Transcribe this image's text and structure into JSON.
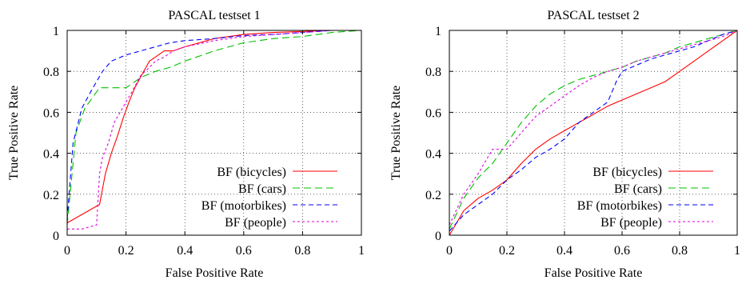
{
  "chart_data": [
    {
      "type": "line",
      "title": "PASCAL testset 1",
      "xlabel": "False Positive Rate",
      "ylabel": "True Positive Rate",
      "xlim": [
        0,
        1
      ],
      "ylim": [
        0,
        1
      ],
      "xticks": [
        "0",
        "0.2",
        "0.4",
        "0.6",
        "0.8",
        "1"
      ],
      "yticks": [
        "0",
        "0.2",
        "0.4",
        "0.6",
        "0.8",
        "1"
      ],
      "grid": true,
      "legend_position": "bottom-right",
      "series": [
        {
          "name": "BF (bicycles)",
          "color": "#ff0000",
          "dash": "solid",
          "x": [
            0,
            0.11,
            0.13,
            0.15,
            0.17,
            0.19,
            0.21,
            0.23,
            0.26,
            0.28,
            0.3,
            0.33,
            0.36,
            0.4,
            0.45,
            0.5,
            0.55,
            0.6,
            0.7,
            0.8,
            0.9,
            1
          ],
          "y": [
            0.06,
            0.15,
            0.3,
            0.4,
            0.48,
            0.57,
            0.65,
            0.72,
            0.8,
            0.85,
            0.87,
            0.9,
            0.9,
            0.92,
            0.94,
            0.96,
            0.97,
            0.98,
            0.99,
            0.995,
            1.0,
            1.0
          ]
        },
        {
          "name": "BF (cars)",
          "color": "#00c000",
          "dash": "long",
          "x": [
            0,
            0.01,
            0.03,
            0.06,
            0.1,
            0.11,
            0.2,
            0.25,
            0.3,
            0.35,
            0.4,
            0.5,
            0.55,
            0.6,
            0.65,
            0.7,
            0.8,
            0.85,
            0.9,
            1
          ],
          "y": [
            0.05,
            0.2,
            0.5,
            0.62,
            0.7,
            0.72,
            0.72,
            0.77,
            0.8,
            0.82,
            0.85,
            0.9,
            0.92,
            0.94,
            0.95,
            0.96,
            0.97,
            0.98,
            0.99,
            1.0
          ]
        },
        {
          "name": "BF (motorbikes)",
          "color": "#0000ff",
          "dash": "medium",
          "x": [
            0,
            0.02,
            0.05,
            0.08,
            0.1,
            0.12,
            0.15,
            0.2,
            0.25,
            0.3,
            0.35,
            0.4,
            0.5,
            0.6,
            0.7,
            0.8,
            0.9,
            1
          ],
          "y": [
            0.08,
            0.45,
            0.62,
            0.7,
            0.75,
            0.8,
            0.85,
            0.88,
            0.9,
            0.92,
            0.94,
            0.95,
            0.96,
            0.975,
            0.98,
            0.99,
            1.0,
            1.0
          ]
        },
        {
          "name": "BF (people)",
          "color": "#e000e0",
          "dash": "dotted",
          "x": [
            0,
            0.05,
            0.1,
            0.11,
            0.12,
            0.14,
            0.16,
            0.18,
            0.2,
            0.22,
            0.25,
            0.28,
            0.3,
            0.33,
            0.36,
            0.4,
            0.5,
            0.6,
            0.7,
            0.8,
            0.9,
            1
          ],
          "y": [
            0.03,
            0.03,
            0.05,
            0.3,
            0.38,
            0.45,
            0.55,
            0.6,
            0.65,
            0.7,
            0.78,
            0.82,
            0.85,
            0.87,
            0.9,
            0.92,
            0.95,
            0.97,
            0.98,
            0.99,
            1.0,
            1.0
          ]
        }
      ]
    },
    {
      "type": "line",
      "title": "PASCAL testset 2",
      "xlabel": "False Positive Rate",
      "ylabel": "True Positive Rate",
      "xlim": [
        0,
        1
      ],
      "ylim": [
        0,
        1
      ],
      "xticks": [
        "0",
        "0.2",
        "0.4",
        "0.6",
        "0.8",
        "1"
      ],
      "yticks": [
        "0",
        "0.2",
        "0.4",
        "0.6",
        "0.8",
        "1"
      ],
      "grid": true,
      "legend_position": "bottom-right",
      "series": [
        {
          "name": "BF (bicycles)",
          "color": "#ff0000",
          "dash": "solid",
          "x": [
            0,
            0.05,
            0.1,
            0.15,
            0.2,
            0.25,
            0.3,
            0.35,
            0.4,
            0.45,
            0.5,
            0.55,
            0.6,
            0.65,
            0.7,
            0.75,
            0.8,
            0.85,
            0.9,
            0.95,
            1
          ],
          "y": [
            0,
            0.12,
            0.18,
            0.22,
            0.27,
            0.35,
            0.42,
            0.47,
            0.51,
            0.55,
            0.59,
            0.63,
            0.66,
            0.69,
            0.72,
            0.75,
            0.8,
            0.85,
            0.9,
            0.95,
            1.0
          ]
        },
        {
          "name": "BF (cars)",
          "color": "#00c000",
          "dash": "long",
          "x": [
            0,
            0.05,
            0.1,
            0.15,
            0.2,
            0.25,
            0.3,
            0.35,
            0.4,
            0.45,
            0.5,
            0.55,
            0.6,
            0.65,
            0.7,
            0.75,
            0.8,
            0.85,
            0.9,
            0.95,
            1
          ],
          "y": [
            0.03,
            0.18,
            0.28,
            0.35,
            0.45,
            0.55,
            0.63,
            0.69,
            0.73,
            0.76,
            0.78,
            0.8,
            0.82,
            0.85,
            0.87,
            0.89,
            0.92,
            0.94,
            0.96,
            0.98,
            1.0
          ]
        },
        {
          "name": "BF (motorbikes)",
          "color": "#0000ff",
          "dash": "medium",
          "x": [
            0,
            0.05,
            0.1,
            0.15,
            0.2,
            0.25,
            0.3,
            0.35,
            0.4,
            0.45,
            0.5,
            0.55,
            0.58,
            0.6,
            0.65,
            0.7,
            0.75,
            0.8,
            0.85,
            0.9,
            0.95,
            1
          ],
          "y": [
            0.02,
            0.1,
            0.15,
            0.2,
            0.27,
            0.32,
            0.38,
            0.42,
            0.47,
            0.55,
            0.6,
            0.65,
            0.75,
            0.8,
            0.83,
            0.86,
            0.88,
            0.9,
            0.92,
            0.95,
            0.98,
            1.0
          ]
        },
        {
          "name": "BF (people)",
          "color": "#e000e0",
          "dash": "dotted",
          "x": [
            0,
            0.05,
            0.1,
            0.15,
            0.2,
            0.25,
            0.3,
            0.35,
            0.4,
            0.45,
            0.5,
            0.55,
            0.6,
            0.65,
            0.7,
            0.75,
            0.8,
            0.85,
            0.9,
            0.95,
            1
          ],
          "y": [
            0.05,
            0.2,
            0.3,
            0.42,
            0.42,
            0.5,
            0.58,
            0.63,
            0.68,
            0.73,
            0.77,
            0.8,
            0.82,
            0.85,
            0.87,
            0.89,
            0.91,
            0.93,
            0.95,
            0.97,
            1.0
          ]
        }
      ]
    }
  ]
}
